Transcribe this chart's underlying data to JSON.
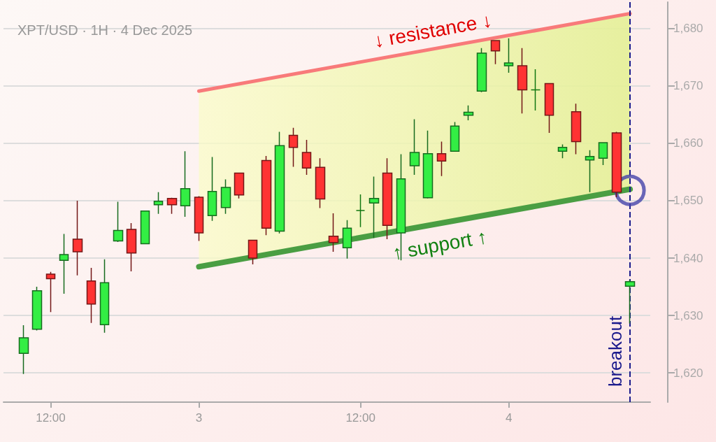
{
  "chart_data": {
    "type": "candlestick",
    "title": "XPT/USD · 1H · 4 Dec 2025",
    "categories": [
      null,
      null,
      "12:00",
      null,
      null,
      null,
      null,
      null,
      null,
      null,
      null,
      null,
      null,
      "3",
      null,
      null,
      null,
      null,
      null,
      null,
      null,
      null,
      null,
      null,
      null,
      "12:00",
      null,
      null,
      null,
      null,
      null,
      null,
      null,
      null,
      null,
      null,
      "4",
      null,
      null,
      null,
      null,
      null,
      null,
      null,
      null,
      null
    ],
    "ylim": [
      1614.9,
      1684.6
    ],
    "yticks": [
      {
        "value": 1620,
        "label": "1,620"
      },
      {
        "value": 1630,
        "label": "1,630"
      },
      {
        "value": 1640,
        "label": "1,640"
      },
      {
        "value": 1650,
        "label": "1,650"
      },
      {
        "value": 1660,
        "label": "1,660"
      },
      {
        "value": 1670,
        "label": "1,670"
      },
      {
        "value": 1680,
        "label": "1,680"
      }
    ],
    "grid": "y",
    "ohlc": [
      [
        1623.4,
        1628.3,
        1619.8,
        1626.1
      ],
      [
        1627.6,
        1635.0,
        1627.4,
        1634.3
      ],
      [
        1637.2,
        1637.6,
        1630.6,
        1636.4
      ],
      [
        1639.6,
        1644.2,
        1633.8,
        1640.6
      ],
      [
        1643.3,
        1650.0,
        1637.0,
        1641.1
      ],
      [
        1636.0,
        1638.3,
        1628.7,
        1632.0
      ],
      [
        1628.4,
        1639.8,
        1627.0,
        1635.7
      ],
      [
        1643.0,
        1649.8,
        1642.8,
        1644.8
      ],
      [
        1645.0,
        1646.1,
        1637.7,
        1640.9
      ],
      [
        1642.5,
        1648.3,
        1642.4,
        1648.2
      ],
      [
        1649.3,
        1651.5,
        1647.7,
        1649.9
      ],
      [
        1650.4,
        1650.5,
        1647.7,
        1649.3
      ],
      [
        1649.1,
        1658.6,
        1647.2,
        1652.1
      ],
      [
        1650.6,
        1650.8,
        1643.0,
        1644.4
      ],
      [
        1647.4,
        1657.6,
        1646.5,
        1651.6
      ],
      [
        1648.8,
        1653.7,
        1647.7,
        1652.3
      ],
      [
        1654.8,
        1654.9,
        1650.4,
        1651.0
      ],
      [
        1643.1,
        1643.2,
        1638.9,
        1640.0
      ],
      [
        1657.0,
        1657.8,
        1644.0,
        1645.2
      ],
      [
        1644.7,
        1662.0,
        1644.3,
        1659.6
      ],
      [
        1661.4,
        1662.7,
        1655.9,
        1659.3
      ],
      [
        1658.4,
        1660.6,
        1654.5,
        1655.7
      ],
      [
        1655.8,
        1657.4,
        1648.7,
        1650.3
      ],
      [
        1643.8,
        1647.8,
        1641.1,
        1642.7
      ],
      [
        1641.8,
        1646.6,
        1639.9,
        1645.2
      ],
      [
        1648.3,
        1651.1,
        1645.4,
        1648.3
      ],
      [
        1649.6,
        1654.2,
        1643.5,
        1650.4
      ],
      [
        1654.8,
        1657.4,
        1643.3,
        1645.7
      ],
      [
        1644.4,
        1658.1,
        1639.6,
        1653.8
      ],
      [
        1656.1,
        1664.2,
        1654.5,
        1658.4
      ],
      [
        1650.5,
        1662.2,
        1650.4,
        1658.2
      ],
      [
        1658.2,
        1660.3,
        1654.3,
        1656.9
      ],
      [
        1658.6,
        1663.7,
        1658.6,
        1663.0
      ],
      [
        1664.9,
        1666.6,
        1664.0,
        1665.4
      ],
      [
        1669.1,
        1676.6,
        1668.9,
        1675.7
      ],
      [
        1677.9,
        1678.0,
        1673.8,
        1676.1
      ],
      [
        1673.5,
        1678.3,
        1672.3,
        1674.0
      ],
      [
        1673.5,
        1676.6,
        1665.2,
        1669.3
      ],
      [
        1669.3,
        1672.9,
        1665.7,
        1669.3
      ],
      [
        1670.4,
        1670.5,
        1661.8,
        1664.9
      ],
      [
        1658.6,
        1659.8,
        1657.4,
        1659.3
      ],
      [
        1665.5,
        1666.9,
        1658.1,
        1660.3
      ],
      [
        1657.1,
        1658.8,
        1651.5,
        1657.7
      ],
      [
        1657.4,
        1660.2,
        1656.2,
        1660.1
      ],
      [
        1661.8,
        1662.0,
        1650.6,
        1651.5
      ],
      [
        1635.1,
        1636.2,
        1628.6,
        1635.9
      ]
    ],
    "colors": [
      "#33ee44",
      "#33ee44",
      "#ff3333",
      "#33ee44",
      "#ff3333",
      "#ff3333",
      "#33ee44",
      "#33ee44",
      "#ff3333",
      "#33ee44",
      "#33ee44",
      "#ff3333",
      "#33ee44",
      "#ff3333",
      "#33ee44",
      "#33ee44",
      "#ff3333",
      "#ff3333",
      "#ff3333",
      "#33ee44",
      "#ff3333",
      "#ff3333",
      "#ff3333",
      "#ff3333",
      "#33ee44",
      "#117711",
      "#33ee44",
      "#ff3333",
      "#33ee44",
      "#33ee44",
      "#33ee44",
      "#ff3333",
      "#33ee44",
      "#33ee44",
      "#33ee44",
      "#ff3333",
      "#33ee44",
      "#ff3333",
      "#117711",
      "#ff3333",
      "#33ee44",
      "#ff3333",
      "#33ee44",
      "#33ee44",
      "#ff3333",
      "#33ee44"
    ],
    "series": [
      {
        "type": "line",
        "color": "#4a9e43",
        "values": [
          null,
          null,
          null,
          null,
          null,
          null,
          null,
          null,
          null,
          null,
          null,
          null,
          null,
          1638.5,
          null,
          null,
          null,
          null,
          null,
          null,
          null,
          null,
          null,
          null,
          null,
          null,
          null,
          null,
          null,
          null,
          null,
          null,
          null,
          null,
          null,
          null,
          null,
          null,
          null,
          null,
          null,
          null,
          null,
          null,
          null,
          1652.0
        ],
        "lower": [
          null,
          null,
          null,
          null,
          null,
          null,
          null,
          null,
          null,
          null,
          null,
          null,
          null,
          1638.5,
          null,
          null,
          null,
          null,
          null,
          null,
          null,
          null,
          null,
          null,
          null,
          null,
          null,
          null,
          null,
          null,
          null,
          null,
          null,
          null,
          null,
          null,
          null,
          null,
          null,
          null,
          null,
          null,
          null,
          null,
          null,
          1652.0
        ],
        "upper": [
          null,
          null,
          null,
          null,
          null,
          null,
          null,
          null,
          null,
          null,
          null,
          null,
          null,
          1669.1,
          null,
          null,
          null,
          null,
          null,
          null,
          null,
          null,
          null,
          null,
          null,
          null,
          null,
          null,
          null,
          null,
          null,
          null,
          null,
          null,
          null,
          null,
          null,
          null,
          null,
          null,
          null,
          null,
          null,
          null,
          null,
          1682.6
        ]
      },
      {
        "type": "line",
        "color": "#f87a7a",
        "values": [
          null,
          null,
          null,
          null,
          null,
          null,
          null,
          null,
          null,
          null,
          null,
          null,
          null,
          1669.1,
          null,
          null,
          null,
          null,
          null,
          null,
          null,
          null,
          null,
          null,
          null,
          null,
          null,
          null,
          null,
          null,
          null,
          null,
          null,
          null,
          null,
          null,
          null,
          null,
          null,
          null,
          null,
          null,
          null,
          null,
          null,
          1682.6
        ]
      },
      {
        "type": "scatter",
        "color": "#4444aa",
        "marker": "circle",
        "values": [
          null,
          null,
          null,
          null,
          null,
          null,
          null,
          null,
          null,
          null,
          null,
          null,
          null,
          null,
          null,
          null,
          null,
          null,
          null,
          null,
          null,
          null,
          null,
          null,
          null,
          null,
          null,
          null,
          null,
          null,
          null,
          null,
          null,
          null,
          null,
          null,
          null,
          null,
          null,
          null,
          null,
          null,
          null,
          null,
          null,
          1651.8
        ]
      }
    ],
    "ref_lines": [
      {
        "axis": "x",
        "label": "breakout",
        "color": "#1a1a8c",
        "line_style": "dashed"
      }
    ],
    "annotations": [
      "↓ resistance ↓",
      "↑ support ↑"
    ]
  }
}
